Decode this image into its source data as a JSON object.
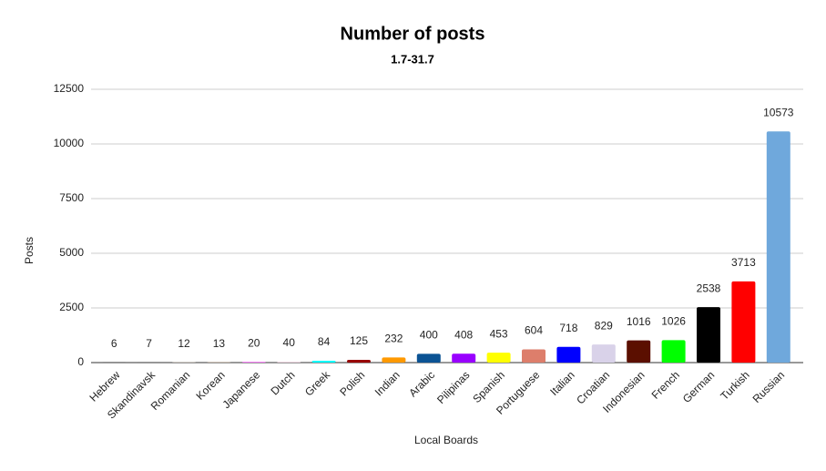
{
  "chart_data": {
    "type": "bar",
    "title": "Number of posts",
    "subtitle": "1.7-31.7",
    "x_label": "Local Boards",
    "y_label": "Posts",
    "categories": [
      "Hebrew",
      "Skandinavsk",
      "Romanian",
      "Korean",
      "Japanese",
      "Dutch",
      "Greek",
      "Polish",
      "Indian",
      "Arabic",
      "Pilipinas",
      "Spanish",
      "Portuguese",
      "Italian",
      "Croatian",
      "Indonesian",
      "French",
      "German",
      "Turkish",
      "Russian"
    ],
    "values": [
      6,
      7,
      12,
      13,
      20,
      40,
      84,
      125,
      232,
      400,
      408,
      453,
      604,
      718,
      829,
      1016,
      1026,
      2538,
      3713,
      10573
    ],
    "colors": [
      "#000000",
      "#222222",
      "#fce5cd",
      "#f9cb9c",
      "#ff00ff",
      "#ead1dc",
      "#00ffff",
      "#980000",
      "#ff9900",
      "#0b5394",
      "#9900ff",
      "#ffff00",
      "#dd7e6b",
      "#0000ff",
      "#d9d2e9",
      "#5b0f00",
      "#00ff00",
      "#000000",
      "#ff0000",
      "#6fa8dc"
    ],
    "ylim": [
      0,
      12500
    ],
    "yticks": [
      0,
      2500,
      5000,
      7500,
      10000,
      12500
    ],
    "grid": true
  }
}
